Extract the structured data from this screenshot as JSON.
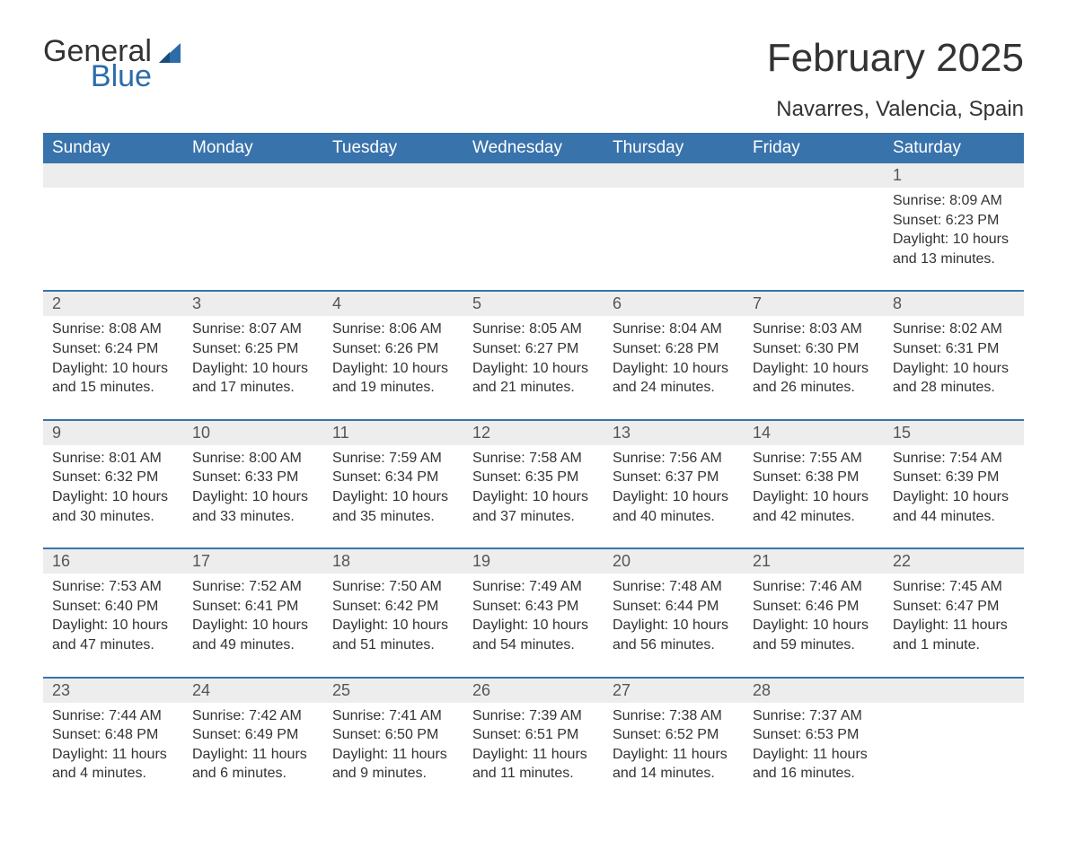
{
  "logo": {
    "general": "General",
    "blue": "Blue"
  },
  "title": "February 2025",
  "location": "Navarres, Valencia, Spain",
  "colors": {
    "header_bg": "#3973ac",
    "header_text": "#ffffff",
    "daynum_bg": "#ededed",
    "daynum_text": "#555555",
    "body_text": "#333333",
    "rule": "#3973ac",
    "logo_blue": "#2c6ca9"
  },
  "day_headers": [
    "Sunday",
    "Monday",
    "Tuesday",
    "Wednesday",
    "Thursday",
    "Friday",
    "Saturday"
  ],
  "weeks": [
    [
      {
        "day": "",
        "sunrise": "",
        "sunset": "",
        "daylight": ""
      },
      {
        "day": "",
        "sunrise": "",
        "sunset": "",
        "daylight": ""
      },
      {
        "day": "",
        "sunrise": "",
        "sunset": "",
        "daylight": ""
      },
      {
        "day": "",
        "sunrise": "",
        "sunset": "",
        "daylight": ""
      },
      {
        "day": "",
        "sunrise": "",
        "sunset": "",
        "daylight": ""
      },
      {
        "day": "",
        "sunrise": "",
        "sunset": "",
        "daylight": ""
      },
      {
        "day": "1",
        "sunrise": "Sunrise: 8:09 AM",
        "sunset": "Sunset: 6:23 PM",
        "daylight": "Daylight: 10 hours and 13 minutes."
      }
    ],
    [
      {
        "day": "2",
        "sunrise": "Sunrise: 8:08 AM",
        "sunset": "Sunset: 6:24 PM",
        "daylight": "Daylight: 10 hours and 15 minutes."
      },
      {
        "day": "3",
        "sunrise": "Sunrise: 8:07 AM",
        "sunset": "Sunset: 6:25 PM",
        "daylight": "Daylight: 10 hours and 17 minutes."
      },
      {
        "day": "4",
        "sunrise": "Sunrise: 8:06 AM",
        "sunset": "Sunset: 6:26 PM",
        "daylight": "Daylight: 10 hours and 19 minutes."
      },
      {
        "day": "5",
        "sunrise": "Sunrise: 8:05 AM",
        "sunset": "Sunset: 6:27 PM",
        "daylight": "Daylight: 10 hours and 21 minutes."
      },
      {
        "day": "6",
        "sunrise": "Sunrise: 8:04 AM",
        "sunset": "Sunset: 6:28 PM",
        "daylight": "Daylight: 10 hours and 24 minutes."
      },
      {
        "day": "7",
        "sunrise": "Sunrise: 8:03 AM",
        "sunset": "Sunset: 6:30 PM",
        "daylight": "Daylight: 10 hours and 26 minutes."
      },
      {
        "day": "8",
        "sunrise": "Sunrise: 8:02 AM",
        "sunset": "Sunset: 6:31 PM",
        "daylight": "Daylight: 10 hours and 28 minutes."
      }
    ],
    [
      {
        "day": "9",
        "sunrise": "Sunrise: 8:01 AM",
        "sunset": "Sunset: 6:32 PM",
        "daylight": "Daylight: 10 hours and 30 minutes."
      },
      {
        "day": "10",
        "sunrise": "Sunrise: 8:00 AM",
        "sunset": "Sunset: 6:33 PM",
        "daylight": "Daylight: 10 hours and 33 minutes."
      },
      {
        "day": "11",
        "sunrise": "Sunrise: 7:59 AM",
        "sunset": "Sunset: 6:34 PM",
        "daylight": "Daylight: 10 hours and 35 minutes."
      },
      {
        "day": "12",
        "sunrise": "Sunrise: 7:58 AM",
        "sunset": "Sunset: 6:35 PM",
        "daylight": "Daylight: 10 hours and 37 minutes."
      },
      {
        "day": "13",
        "sunrise": "Sunrise: 7:56 AM",
        "sunset": "Sunset: 6:37 PM",
        "daylight": "Daylight: 10 hours and 40 minutes."
      },
      {
        "day": "14",
        "sunrise": "Sunrise: 7:55 AM",
        "sunset": "Sunset: 6:38 PM",
        "daylight": "Daylight: 10 hours and 42 minutes."
      },
      {
        "day": "15",
        "sunrise": "Sunrise: 7:54 AM",
        "sunset": "Sunset: 6:39 PM",
        "daylight": "Daylight: 10 hours and 44 minutes."
      }
    ],
    [
      {
        "day": "16",
        "sunrise": "Sunrise: 7:53 AM",
        "sunset": "Sunset: 6:40 PM",
        "daylight": "Daylight: 10 hours and 47 minutes."
      },
      {
        "day": "17",
        "sunrise": "Sunrise: 7:52 AM",
        "sunset": "Sunset: 6:41 PM",
        "daylight": "Daylight: 10 hours and 49 minutes."
      },
      {
        "day": "18",
        "sunrise": "Sunrise: 7:50 AM",
        "sunset": "Sunset: 6:42 PM",
        "daylight": "Daylight: 10 hours and 51 minutes."
      },
      {
        "day": "19",
        "sunrise": "Sunrise: 7:49 AM",
        "sunset": "Sunset: 6:43 PM",
        "daylight": "Daylight: 10 hours and 54 minutes."
      },
      {
        "day": "20",
        "sunrise": "Sunrise: 7:48 AM",
        "sunset": "Sunset: 6:44 PM",
        "daylight": "Daylight: 10 hours and 56 minutes."
      },
      {
        "day": "21",
        "sunrise": "Sunrise: 7:46 AM",
        "sunset": "Sunset: 6:46 PM",
        "daylight": "Daylight: 10 hours and 59 minutes."
      },
      {
        "day": "22",
        "sunrise": "Sunrise: 7:45 AM",
        "sunset": "Sunset: 6:47 PM",
        "daylight": "Daylight: 11 hours and 1 minute."
      }
    ],
    [
      {
        "day": "23",
        "sunrise": "Sunrise: 7:44 AM",
        "sunset": "Sunset: 6:48 PM",
        "daylight": "Daylight: 11 hours and 4 minutes."
      },
      {
        "day": "24",
        "sunrise": "Sunrise: 7:42 AM",
        "sunset": "Sunset: 6:49 PM",
        "daylight": "Daylight: 11 hours and 6 minutes."
      },
      {
        "day": "25",
        "sunrise": "Sunrise: 7:41 AM",
        "sunset": "Sunset: 6:50 PM",
        "daylight": "Daylight: 11 hours and 9 minutes."
      },
      {
        "day": "26",
        "sunrise": "Sunrise: 7:39 AM",
        "sunset": "Sunset: 6:51 PM",
        "daylight": "Daylight: 11 hours and 11 minutes."
      },
      {
        "day": "27",
        "sunrise": "Sunrise: 7:38 AM",
        "sunset": "Sunset: 6:52 PM",
        "daylight": "Daylight: 11 hours and 14 minutes."
      },
      {
        "day": "28",
        "sunrise": "Sunrise: 7:37 AM",
        "sunset": "Sunset: 6:53 PM",
        "daylight": "Daylight: 11 hours and 16 minutes."
      },
      {
        "day": "",
        "sunrise": "",
        "sunset": "",
        "daylight": ""
      }
    ]
  ]
}
